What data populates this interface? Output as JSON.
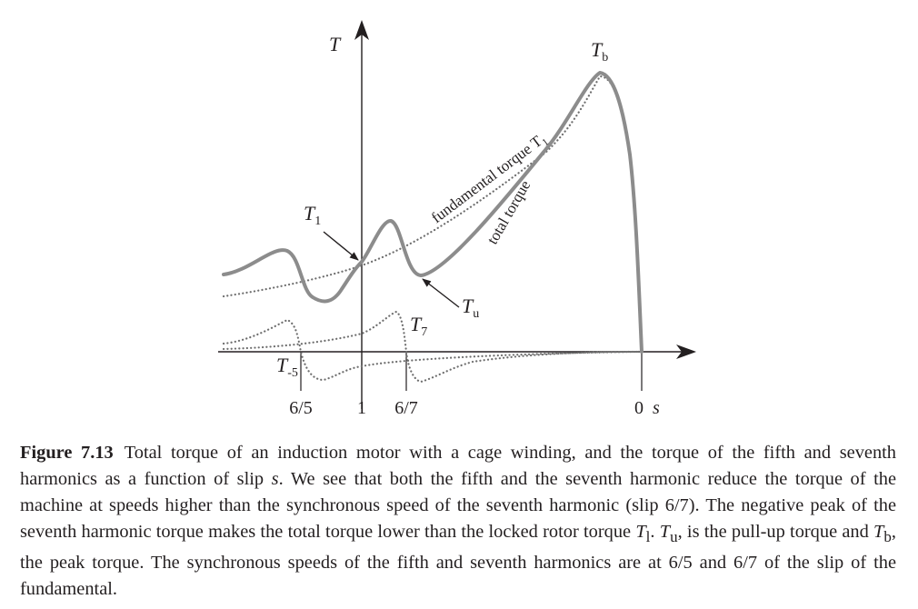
{
  "figure": {
    "axis_label_t": "T",
    "axis_label_s": "s",
    "ticks": [
      "6/5",
      "1",
      "6/7",
      "0"
    ],
    "label_tb": "T",
    "label_tb_sub": "b",
    "label_t1": "T",
    "label_t1_sub": "1",
    "label_tu": "T",
    "label_tu_sub": "u",
    "label_t7": "T",
    "label_t7_sub": "7",
    "label_tm5": "T",
    "label_tm5_sub": "-5",
    "label_fundamental": "fundamental torque T",
    "label_fundamental_sub": "1",
    "label_total": "total torque"
  },
  "caption": {
    "label": "Figure 7.13",
    "part1": "Total torque of an induction motor with a cage winding, and the torque of the fifth and seventh harmonics as a function of slip ",
    "s": "s",
    "part2": ". We see that both the fifth and the seventh harmonic reduce the torque of the machine at speeds higher than the synchronous speed of the seventh harmonic (slip 6/7). The negative peak of the seventh harmonic torque makes the total torque lower than the locked rotor torque ",
    "t1": "T",
    "t1_sub": "l",
    "part3": ". ",
    "tu": "T",
    "tu_sub": "u",
    "part4": ", is the pull-up torque and ",
    "tb": "T",
    "tb_sub": "b",
    "part5": ", the peak torque. The synchronous speeds of the fifth and seventh harmonics are at 6/5 and 6/7 of the slip of the fundamental."
  }
}
